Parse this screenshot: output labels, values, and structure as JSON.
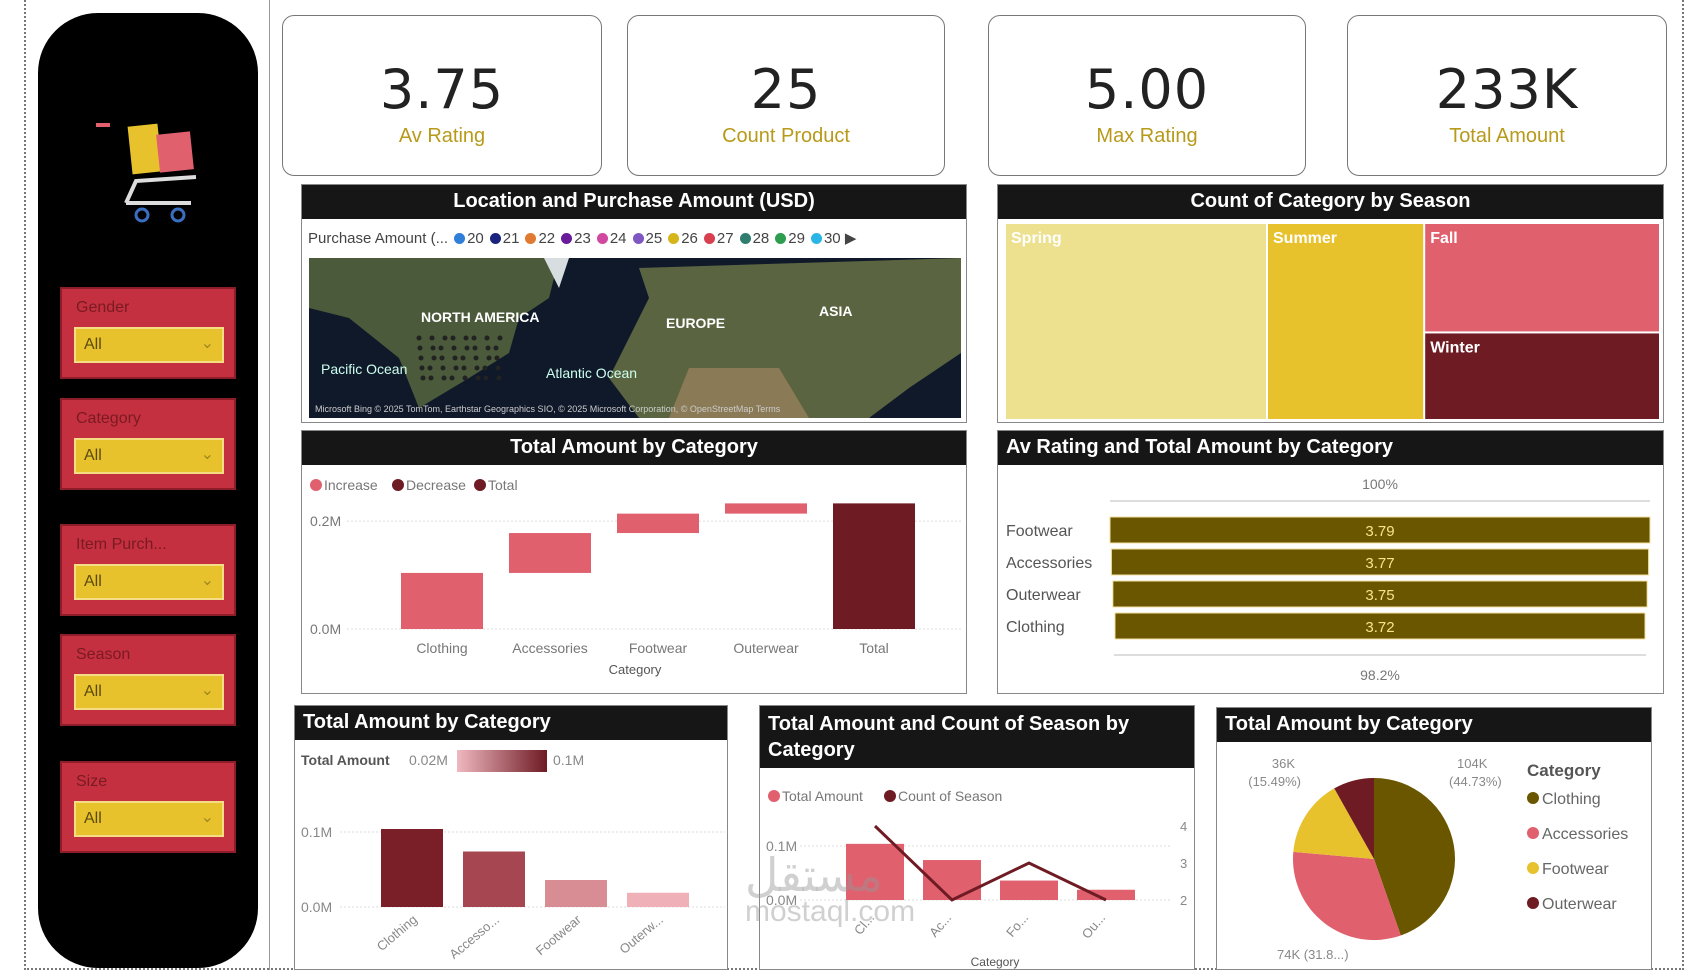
{
  "sidebar": {
    "logo": "shopping-cart-with-gifts",
    "slicers": [
      {
        "label": "Gender",
        "value": "All"
      },
      {
        "label": "Category",
        "value": "All"
      },
      {
        "label": "Item Purch...",
        "value": "All"
      },
      {
        "label": "Season",
        "value": "All"
      },
      {
        "label": "Size",
        "value": "All"
      }
    ]
  },
  "kpis": [
    {
      "value": "3.75",
      "label": "Av Rating"
    },
    {
      "value": "25",
      "label": "Count Product"
    },
    {
      "value": "5.00",
      "label": "Max Rating"
    },
    {
      "value": "233K",
      "label": "Total Amount"
    }
  ],
  "colors": {
    "accent_gold": "#b79a1a",
    "olive": "#6b5600",
    "pink": "#e0606e",
    "maroon": "#6e1b24",
    "yellow": "#e8c22c",
    "red_slicer": "#c4303f"
  },
  "map": {
    "title": "Location and Purchase Amount (USD)",
    "legend_title": "Purchase Amount (...",
    "legend": [
      {
        "v": "20",
        "c": "#2f7fd8"
      },
      {
        "v": "21",
        "c": "#1a237e"
      },
      {
        "v": "22",
        "c": "#e07a30"
      },
      {
        "v": "23",
        "c": "#6a1b9a"
      },
      {
        "v": "24",
        "c": "#d048a0"
      },
      {
        "v": "25",
        "c": "#7e57c2"
      },
      {
        "v": "26",
        "c": "#d4b51a"
      },
      {
        "v": "27",
        "c": "#d84050"
      },
      {
        "v": "28",
        "c": "#2e7d6e"
      },
      {
        "v": "29",
        "c": "#2e9e4e"
      },
      {
        "v": "30",
        "c": "#29b6e6"
      }
    ],
    "labels": {
      "na": "NORTH AMERICA",
      "eu": "EUROPE",
      "asia": "ASIA",
      "pacific": "Pacific Ocean",
      "atlantic": "Atlantic Ocean"
    },
    "attribution": "Microsoft Bing   © 2025 TomTom, Earthstar Geographics SIO, © 2025 Microsoft Corporation, © OpenStreetMap  Terms"
  },
  "chart_data": [
    {
      "id": "treemap",
      "type": "treemap",
      "title": "Count of Category by Season",
      "categories": [
        "Spring",
        "Summer",
        "Fall",
        "Winter"
      ],
      "values": [
        10,
        6,
        5,
        4
      ],
      "colors": [
        "#ede08f",
        "#e8c22c",
        "#e0606e",
        "#6e1b24"
      ]
    },
    {
      "id": "waterfall",
      "type": "bar",
      "subtype": "waterfall",
      "title": "Total Amount by Category",
      "legend": [
        "Increase",
        "Decrease",
        "Total"
      ],
      "legend_colors": [
        "#e0606e",
        "#6e1b24",
        "#6e1b24"
      ],
      "categories": [
        "Clothing",
        "Accessories",
        "Footwear",
        "Outerwear",
        "Total"
      ],
      "values": [
        104000,
        74000,
        36000,
        19000,
        233000
      ],
      "xlabel": "Category",
      "yticks": [
        "0.0M",
        "0.2M"
      ],
      "ylim": [
        0,
        250000
      ]
    },
    {
      "id": "rating",
      "type": "bar",
      "subtype": "horizontal-percent",
      "title": "Av Rating and Total Amount by Category",
      "categories": [
        "Footwear",
        "Accessories",
        "Outerwear",
        "Clothing"
      ],
      "values": [
        3.79,
        3.77,
        3.75,
        3.72
      ],
      "top_label": "100%",
      "bottom_label": "98.2%"
    },
    {
      "id": "bars",
      "type": "bar",
      "title": "Total Amount by Category",
      "legend_title": "Total Amount",
      "gradient_min": "0.02M",
      "gradient_max": "0.1M",
      "categories": [
        "Clothing",
        "Accesso...",
        "Footwear",
        "Outerw..."
      ],
      "values": [
        104000,
        74000,
        36000,
        19000
      ],
      "yticks": [
        "0.0M",
        "0.1M"
      ],
      "ylim": [
        0,
        130000
      ]
    },
    {
      "id": "combo",
      "type": "bar+line",
      "title": "Total Amount and Count of Season by Category",
      "legend": [
        "Total Amount",
        "Count of Season"
      ],
      "categories": [
        "Cl...",
        "Ac...",
        "Fo...",
        "Ou..."
      ],
      "series": [
        {
          "name": "Total Amount",
          "values": [
            104000,
            74000,
            36000,
            19000
          ]
        },
        {
          "name": "Count of Season",
          "values": [
            4,
            2,
            3,
            2
          ]
        }
      ],
      "xlabel": "Category",
      "yticks": [
        "0.0M",
        "0.1M"
      ],
      "y2ticks": [
        "2",
        "3",
        "4"
      ]
    },
    {
      "id": "pie",
      "type": "pie",
      "title": "Total Amount by Category",
      "legend_title": "Category",
      "categories": [
        "Clothing",
        "Accessories",
        "Footwear",
        "Outerwear"
      ],
      "values": [
        104000,
        74000,
        36000,
        19000
      ],
      "colors": [
        "#6b5600",
        "#e0606e",
        "#e8c22c",
        "#6e1b24"
      ],
      "data_labels": [
        "104K (44.73%)",
        "74K (31.8...)",
        "36K (15.49%)",
        ""
      ]
    }
  ],
  "watermark": {
    "text1": "مستقل",
    "text2": "mostaql.com"
  }
}
